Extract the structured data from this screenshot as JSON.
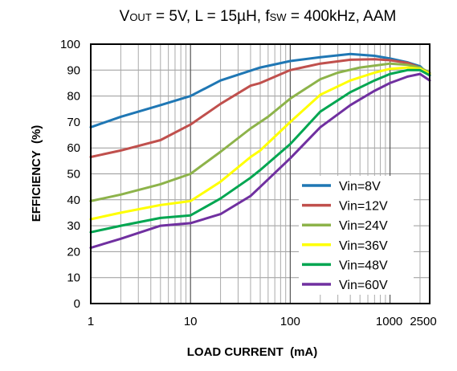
{
  "chart_data": {
    "type": "line",
    "title": "VOUT = 5V, L = 15µH, fSW = 400kHz, AAM",
    "title_parts": [
      {
        "t": "V",
        "sub": false
      },
      {
        "t": "OUT",
        "sub": true
      },
      {
        "t": " = 5V, L = 15µH, f",
        "sub": false
      },
      {
        "t": "SW",
        "sub": true
      },
      {
        "t": " = 400kHz, AAM",
        "sub": false
      }
    ],
    "xlabel": "LOAD CURRENT  (mA)",
    "ylabel": "EFFICIENCY  (%)",
    "x_scale": "log",
    "xlim": [
      1,
      2500
    ],
    "ylim": [
      0,
      100
    ],
    "x_ticks": [
      {
        "value": 1,
        "label": "1"
      },
      {
        "value": 10,
        "label": "10"
      },
      {
        "value": 100,
        "label": "100"
      },
      {
        "value": 1000,
        "label": "1000"
      },
      {
        "value": 2500,
        "label": "2500"
      }
    ],
    "y_ticks": [
      0,
      10,
      20,
      30,
      40,
      50,
      60,
      70,
      80,
      90,
      100
    ],
    "y_tick_labels": [
      "0",
      "10",
      "20",
      "30",
      "40",
      "50",
      "60",
      "70",
      "80",
      "90",
      "100"
    ],
    "grid": true,
    "legend_position": "bottom-right",
    "series": [
      {
        "name": "Vin=8V",
        "color": "#1f77b4",
        "x": [
          1,
          2,
          5,
          10,
          20,
          50,
          100,
          200,
          400,
          700,
          1000,
          1500,
          2000,
          2500
        ],
        "y": [
          68,
          72,
          76.5,
          80,
          86,
          91,
          93.5,
          95,
          96.2,
          95.5,
          94.5,
          93,
          91.5,
          88
        ]
      },
      {
        "name": "Vin=12V",
        "color": "#c0504d",
        "x": [
          1,
          2,
          5,
          10,
          20,
          40,
          50,
          100,
          200,
          400,
          700,
          1000,
          1500,
          2000,
          2500
        ],
        "y": [
          56.5,
          59,
          63,
          69,
          77,
          84,
          85,
          90,
          92.5,
          94,
          94.2,
          93.8,
          92.8,
          91,
          88.5
        ]
      },
      {
        "name": "Vin=24V",
        "color": "#8db34a",
        "x": [
          1,
          2,
          5,
          10,
          20,
          40,
          60,
          100,
          200,
          300,
          500,
          1000,
          1500,
          2000,
          2500
        ],
        "y": [
          39.5,
          42,
          46,
          50,
          58.5,
          67.5,
          72,
          79,
          86.5,
          89,
          91,
          92.5,
          92,
          91,
          89
        ]
      },
      {
        "name": "Vin=36V",
        "color": "#ffff00",
        "x": [
          1,
          2,
          5,
          10,
          20,
          40,
          50,
          100,
          200,
          400,
          700,
          1000,
          1500,
          2000,
          2500
        ],
        "y": [
          32.5,
          35,
          38,
          39.5,
          47,
          56.5,
          59,
          70,
          80.5,
          86,
          89,
          90.5,
          91,
          90.5,
          88.5
        ]
      },
      {
        "name": "Vin=48V",
        "color": "#00a651",
        "x": [
          1,
          2,
          5,
          10,
          20,
          40,
          50,
          100,
          200,
          400,
          700,
          1000,
          1500,
          2000,
          2500
        ],
        "y": [
          27.5,
          30,
          33,
          34,
          40.5,
          48.5,
          51.5,
          61.5,
          74,
          81.5,
          86,
          88.5,
          90,
          90,
          88
        ]
      },
      {
        "name": "Vin=60V",
        "color": "#7030a0",
        "x": [
          1,
          2,
          5,
          10,
          20,
          40,
          50,
          100,
          200,
          400,
          700,
          1000,
          1500,
          2000,
          2500
        ],
        "y": [
          21.5,
          25,
          30,
          31,
          34.5,
          41.5,
          45,
          56,
          68,
          76.5,
          82,
          85,
          87.5,
          88.5,
          86
        ]
      }
    ]
  }
}
